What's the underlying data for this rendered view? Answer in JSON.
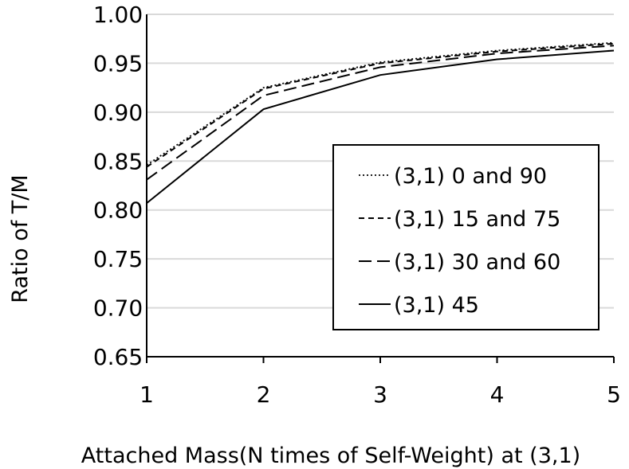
{
  "chart_data": {
    "type": "line",
    "title": "",
    "xlabel": "Attached Mass(N times of Self-Weight) at (3,1)",
    "ylabel": "Ratio of  T/M",
    "x": [
      1,
      2,
      3,
      4,
      5
    ],
    "xticks": [
      "1",
      "2",
      "3",
      "4",
      "5"
    ],
    "yticks": [
      "0.65",
      "0.70",
      "0.75",
      "0.80",
      "0.85",
      "0.90",
      "0.95",
      "1.00"
    ],
    "ylim": [
      0.65,
      1.0
    ],
    "xlim": [
      1,
      5
    ],
    "grid": "horizontal",
    "legend": "right",
    "series": [
      {
        "name": "(3,1) 0 and 90",
        "style": "dotted",
        "values": [
          0.846,
          0.925,
          0.951,
          0.963,
          0.971
        ]
      },
      {
        "name": "(3,1) 15 and 75",
        "style": "dashed-short",
        "values": [
          0.844,
          0.924,
          0.95,
          0.962,
          0.97
        ]
      },
      {
        "name": "(3,1) 30 and 60",
        "style": "dashed-long",
        "values": [
          0.831,
          0.917,
          0.946,
          0.96,
          0.968
        ]
      },
      {
        "name": "(3,1) 45",
        "style": "solid",
        "values": [
          0.807,
          0.903,
          0.938,
          0.954,
          0.963
        ]
      }
    ],
    "colors": {
      "line": "#000000",
      "grid": "#d9d9d9",
      "axis": "#000000"
    }
  }
}
